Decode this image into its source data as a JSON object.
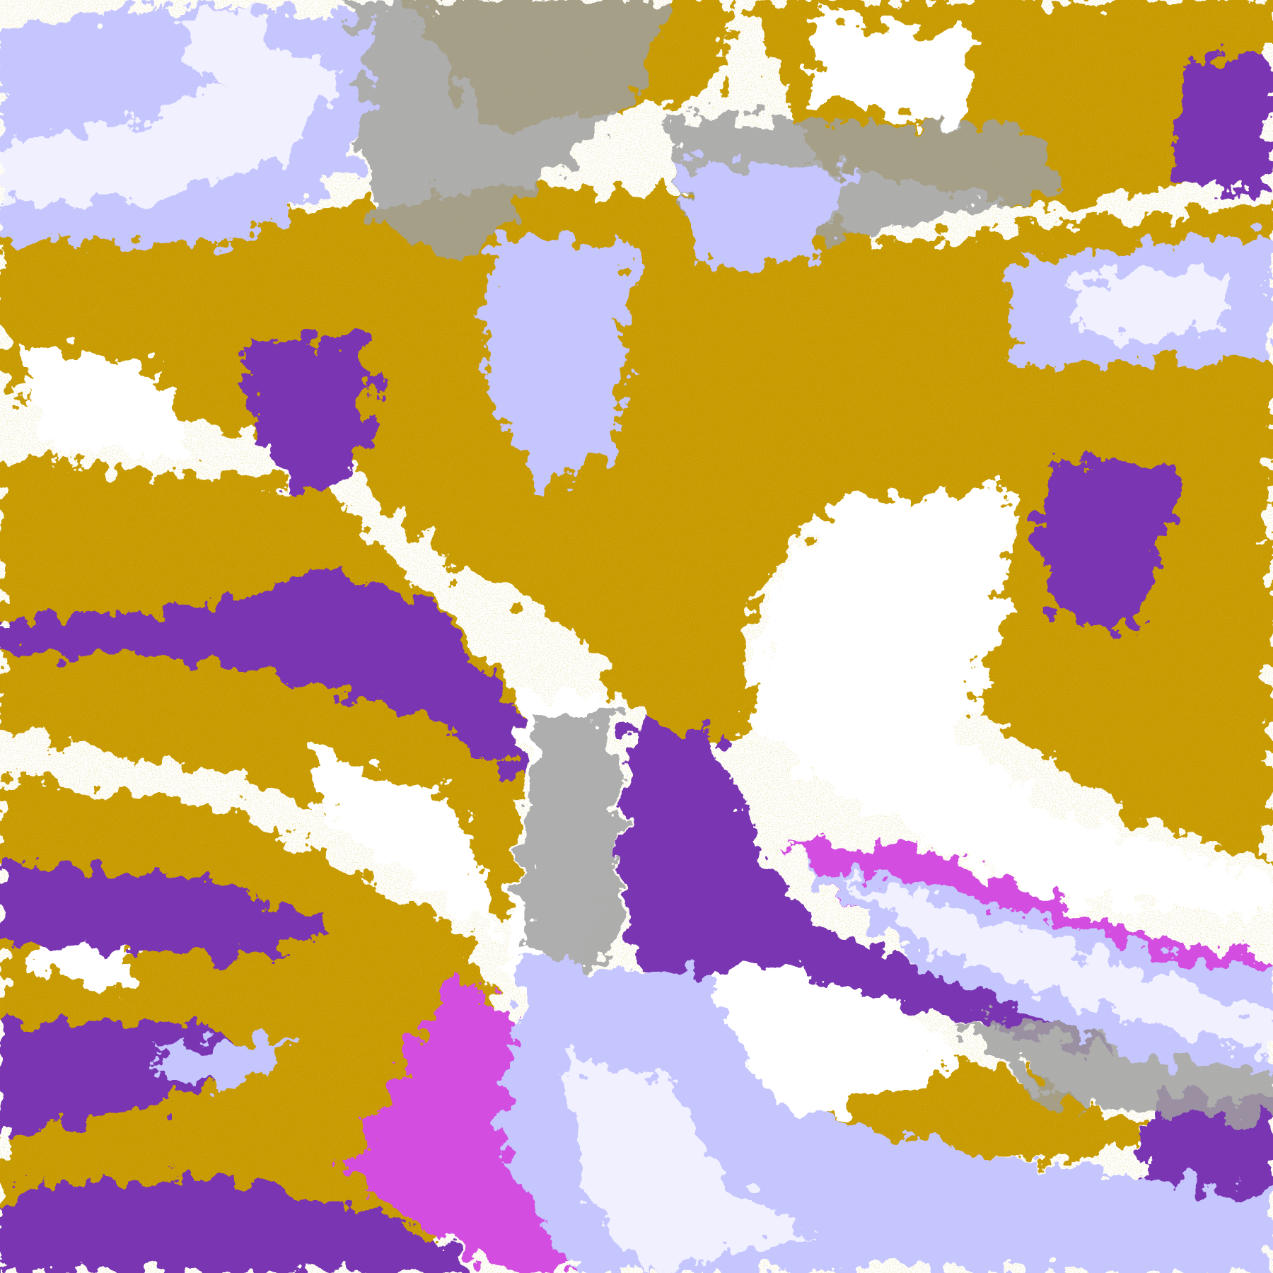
{
  "image": {
    "kind": "false-color satellite cloud classification image",
    "palette": {
      "clear": "#ffffff",
      "low_cloud": "#c89a00",
      "low_cloud_dark": "#a87f10",
      "mid_cloud": "#7a35b2",
      "high_cloud": "#d24ee0",
      "cirrus": "#c6c6ff",
      "deep_cloud": "#f0f0ff",
      "thin_cloud": "#a0a0a0",
      "edge": "#9a9aff"
    }
  }
}
